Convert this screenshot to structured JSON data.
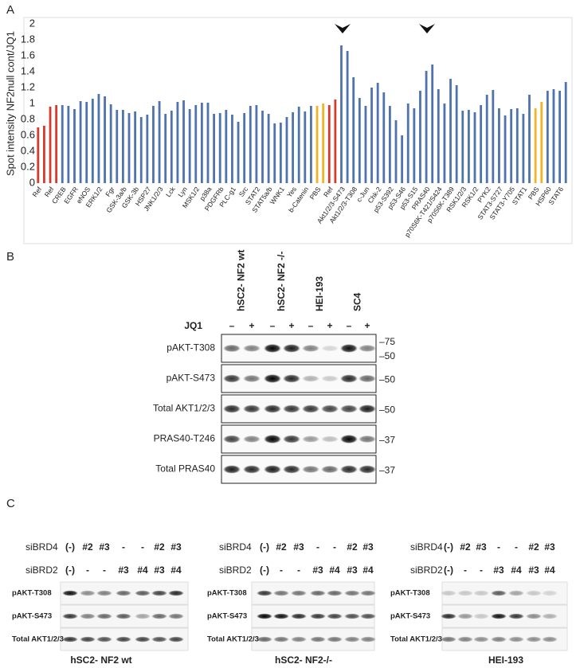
{
  "panel_labels": [
    "A",
    "B",
    "C"
  ],
  "chart_data": {
    "type": "bar",
    "y_label": "Spot intensity NF2null cont/JQ1",
    "categories": [
      "Ref",
      null,
      "Ref",
      null,
      "CREB",
      null,
      "EGFR",
      null,
      "eNOS",
      null,
      "ERK1/2",
      null,
      "Fgr",
      null,
      "GSK-3a/b",
      null,
      "GSK-3b",
      null,
      "HSP27",
      null,
      "JNK1/2/3",
      null,
      "Lck",
      null,
      "Lyn",
      null,
      "MSK1/2",
      null,
      "p38a",
      null,
      "PDGFRb",
      null,
      "PLC-g1",
      null,
      "Src",
      null,
      "STAT2",
      null,
      "STAT5a/b",
      null,
      "WNK1",
      null,
      "Yes",
      null,
      "b-Catenin",
      null,
      "PBS",
      null,
      "Ref",
      null,
      "Akt1/2/3-S473",
      null,
      "Akt1/2/3-T308",
      null,
      "c-Jun",
      null,
      "Chk-2",
      null,
      "p53-S392",
      null,
      "p53-S46",
      null,
      "p53-S15",
      null,
      "PRAS40",
      null,
      "p70S6K-T421/S424",
      null,
      "p70S6K-T389",
      null,
      "RSK1/2/3",
      null,
      "RSK1/2",
      null,
      "PYK2",
      null,
      "STAT3-S727",
      null,
      "STAT3-Y705",
      null,
      "STAT1",
      null,
      "PBS",
      null,
      "HSP60",
      null,
      "STAT6",
      null
    ],
    "values": [
      0.7,
      0.72,
      0.96,
      0.98,
      0.98,
      0.97,
      0.93,
      1.03,
      1.02,
      1.06,
      1.12,
      1.09,
      0.99,
      0.92,
      0.92,
      0.88,
      0.9,
      0.83,
      0.86,
      0.97,
      1.03,
      0.87,
      0.91,
      1.02,
      1.04,
      0.93,
      0.98,
      1.01,
      1.01,
      0.87,
      0.88,
      0.92,
      0.86,
      0.77,
      0.88,
      0.97,
      0.98,
      0.91,
      0.87,
      0.75,
      0.76,
      0.83,
      0.89,
      0.96,
      0.9,
      0.97,
      0.97,
      1.0,
      0.98,
      1.05,
      1.73,
      1.66,
      1.33,
      1.07,
      0.97,
      1.2,
      1.26,
      1.14,
      0.97,
      0.79,
      0.6,
      1.0,
      0.94,
      1.16,
      1.41,
      1.49,
      1.18,
      1.0,
      1.31,
      1.23,
      0.91,
      0.92,
      0.89,
      0.98,
      1.11,
      1.17,
      0.94,
      0.85,
      0.93,
      0.94,
      0.87,
      1.11,
      0.94,
      1.02,
      1.16,
      1.18,
      1.16,
      1.27
    ],
    "colors": [
      "#d63a2c",
      "#d63a2c",
      "#d63a2c",
      "#d63a2c",
      "#4e73ad",
      "#4e73ad",
      "#4e73ad",
      "#4e73ad",
      "#4e73ad",
      "#4e73ad",
      "#4e73ad",
      "#4e73ad",
      "#4e73ad",
      "#4e73ad",
      "#4e73ad",
      "#4e73ad",
      "#4e73ad",
      "#4e73ad",
      "#4e73ad",
      "#4e73ad",
      "#4e73ad",
      "#4e73ad",
      "#4e73ad",
      "#4e73ad",
      "#4e73ad",
      "#4e73ad",
      "#4e73ad",
      "#4e73ad",
      "#4e73ad",
      "#4e73ad",
      "#4e73ad",
      "#4e73ad",
      "#4e73ad",
      "#4e73ad",
      "#4e73ad",
      "#4e73ad",
      "#4e73ad",
      "#4e73ad",
      "#4e73ad",
      "#4e73ad",
      "#4e73ad",
      "#4e73ad",
      "#4e73ad",
      "#4e73ad",
      "#4e73ad",
      "#4e73ad",
      "#f0b424",
      "#f0b424",
      "#d63a2c",
      "#d63a2c",
      "#4e73ad",
      "#4e73ad",
      "#4e73ad",
      "#4e73ad",
      "#4e73ad",
      "#4e73ad",
      "#4e73ad",
      "#4e73ad",
      "#4e73ad",
      "#4e73ad",
      "#4e73ad",
      "#4e73ad",
      "#4e73ad",
      "#4e73ad",
      "#4e73ad",
      "#4e73ad",
      "#4e73ad",
      "#4e73ad",
      "#4e73ad",
      "#4e73ad",
      "#4e73ad",
      "#4e73ad",
      "#4e73ad",
      "#4e73ad",
      "#4e73ad",
      "#4e73ad",
      "#4e73ad",
      "#4e73ad",
      "#4e73ad",
      "#4e73ad",
      "#4e73ad",
      "#4e73ad",
      "#f0b424",
      "#f0b424",
      "#4e73ad",
      "#4e73ad",
      "#4e73ad",
      "#4e73ad"
    ],
    "ylim": [
      0,
      2
    ],
    "yticks": [
      0,
      0.2,
      0.4,
      0.6,
      0.8,
      1,
      1.2,
      1.4,
      1.6,
      1.8,
      2
    ],
    "grid": false
  },
  "blot_b": {
    "lanes": [
      "hSC2- NF2 wt",
      "hSC2- NF2 -/-",
      "HEI-193",
      "SC4"
    ],
    "treatment": "JQ1",
    "signs": [
      "–",
      "+",
      "–",
      "+",
      "–",
      "+",
      "–",
      "+"
    ],
    "rows": [
      {
        "label": "pAKT-T308",
        "markers": [
          "–75",
          "–50"
        ]
      },
      {
        "label": "pAKT-S473",
        "markers": [
          "–50"
        ]
      },
      {
        "label": "Total AKT1/2/3",
        "markers": [
          "–50"
        ]
      },
      {
        "label": "PRAS40-T246",
        "markers": [
          "–37"
        ]
      },
      {
        "label": "Total PRAS40",
        "markers": [
          "–37"
        ]
      }
    ]
  },
  "blot_c": {
    "panels": [
      {
        "title": "hSC2- NF2 wt",
        "conditions": [
          {
            "label": "siBRD4",
            "values": [
              "(-)",
              "#2",
              "#3",
              "-",
              "-",
              "#2",
              "#3"
            ]
          },
          {
            "label": "siBRD2",
            "values": [
              "(-)",
              "-",
              "-",
              "#3",
              "#4",
              "#3",
              "#4"
            ]
          }
        ],
        "rows": [
          "pAKT-T308",
          "pAKT-S473",
          "Total AKT1/2/3"
        ]
      },
      {
        "title": "hSC2- NF2-/-",
        "conditions": [
          {
            "label": "siBRD4",
            "values": [
              "(-)",
              "#2",
              "#3",
              "-",
              "-",
              "#2",
              "#3"
            ]
          },
          {
            "label": "siBRD2",
            "values": [
              "(-)",
              "-",
              "-",
              "#3",
              "#4",
              "#3",
              "#4"
            ]
          }
        ],
        "rows": [
          "pAKT-T308",
          "pAKT-S473",
          "Total AKT1/2/3"
        ]
      },
      {
        "title": "HEI-193",
        "conditions": [
          {
            "label": "siBRD4",
            "values": [
              "(-)",
              "#2",
              "#3",
              "-",
              "-",
              "#2",
              "#3"
            ]
          },
          {
            "label": "siBRD2",
            "values": [
              "(-)",
              "-",
              "-",
              "#3",
              "#4",
              "#3",
              "#4"
            ]
          }
        ],
        "rows": [
          "pAKT-T308",
          "pAKT-S473",
          "Total AKT1/2/3"
        ]
      }
    ]
  }
}
